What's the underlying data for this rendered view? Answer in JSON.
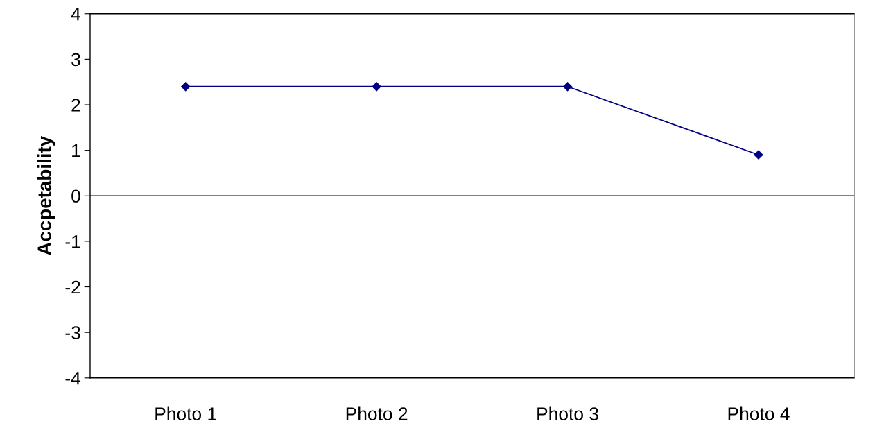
{
  "chart_data": {
    "type": "line",
    "ylabel": "Accpetability",
    "categories": [
      "Photo 1",
      "Photo 2",
      "Photo 3",
      "Photo 4"
    ],
    "series": [
      {
        "color": "#000080",
        "values": [
          2.4,
          2.4,
          2.4,
          0.9
        ]
      }
    ],
    "ylim": [
      -4,
      4
    ],
    "yticks": [
      -4,
      -3,
      -2,
      -1,
      0,
      1,
      2,
      3,
      4
    ],
    "ref_lines": [
      {
        "axis": "y",
        "value": 0,
        "color": "#000000"
      }
    ],
    "marker": "diamond",
    "line_style": "solid",
    "grid": false,
    "legend": false
  }
}
